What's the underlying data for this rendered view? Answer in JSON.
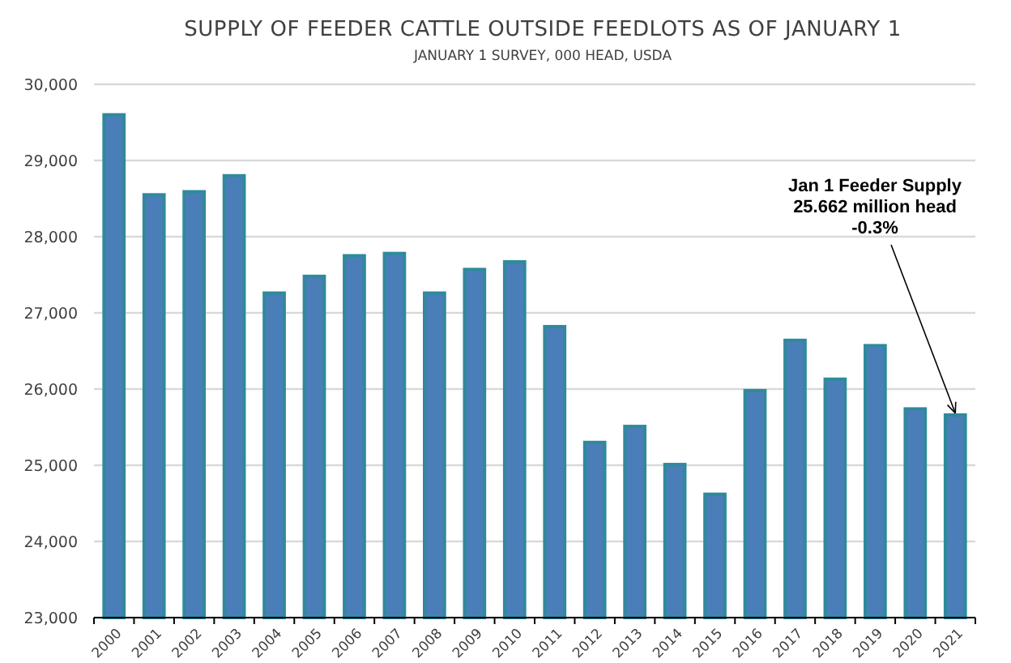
{
  "chart_data": {
    "type": "bar",
    "title": "SUPPLY OF FEEDER CATTLE OUTSIDE FEEDLOTS AS OF JANUARY 1",
    "subtitle": "JANUARY 1  SURVEY, 000 HEAD, USDA",
    "categories": [
      "2000",
      "2001",
      "2002",
      "2003",
      "2004",
      "2005",
      "2006",
      "2007",
      "2008",
      "2009",
      "2010",
      "2011",
      "2012",
      "2013",
      "2014",
      "2015",
      "2016",
      "2017",
      "2018",
      "2019",
      "2020",
      "2021"
    ],
    "values": [
      29600,
      28550,
      28590,
      28800,
      27260,
      27480,
      27750,
      27780,
      27260,
      27570,
      27670,
      26820,
      25300,
      25510,
      25010,
      24620,
      25980,
      26640,
      26130,
      26570,
      25740,
      25660
    ],
    "color": "#4a7eb8",
    "ylim": [
      23000,
      30000
    ],
    "yticks": [
      {
        "value": 23000,
        "label": "23,000"
      },
      {
        "value": 24000,
        "label": "24,000"
      },
      {
        "value": 25000,
        "label": "25,000"
      },
      {
        "value": 26000,
        "label": "26,000"
      },
      {
        "value": 27000,
        "label": "27,000"
      },
      {
        "value": 28000,
        "label": "28,000"
      },
      {
        "value": 29000,
        "label": "29,000"
      },
      {
        "value": 30000,
        "label": "30,000"
      }
    ],
    "grid": "y",
    "annotations": [
      {
        "text": "Jan 1 Feeder Supply\n25.662 million head\n-0.3%",
        "x": "2021",
        "y": 25662
      }
    ]
  }
}
